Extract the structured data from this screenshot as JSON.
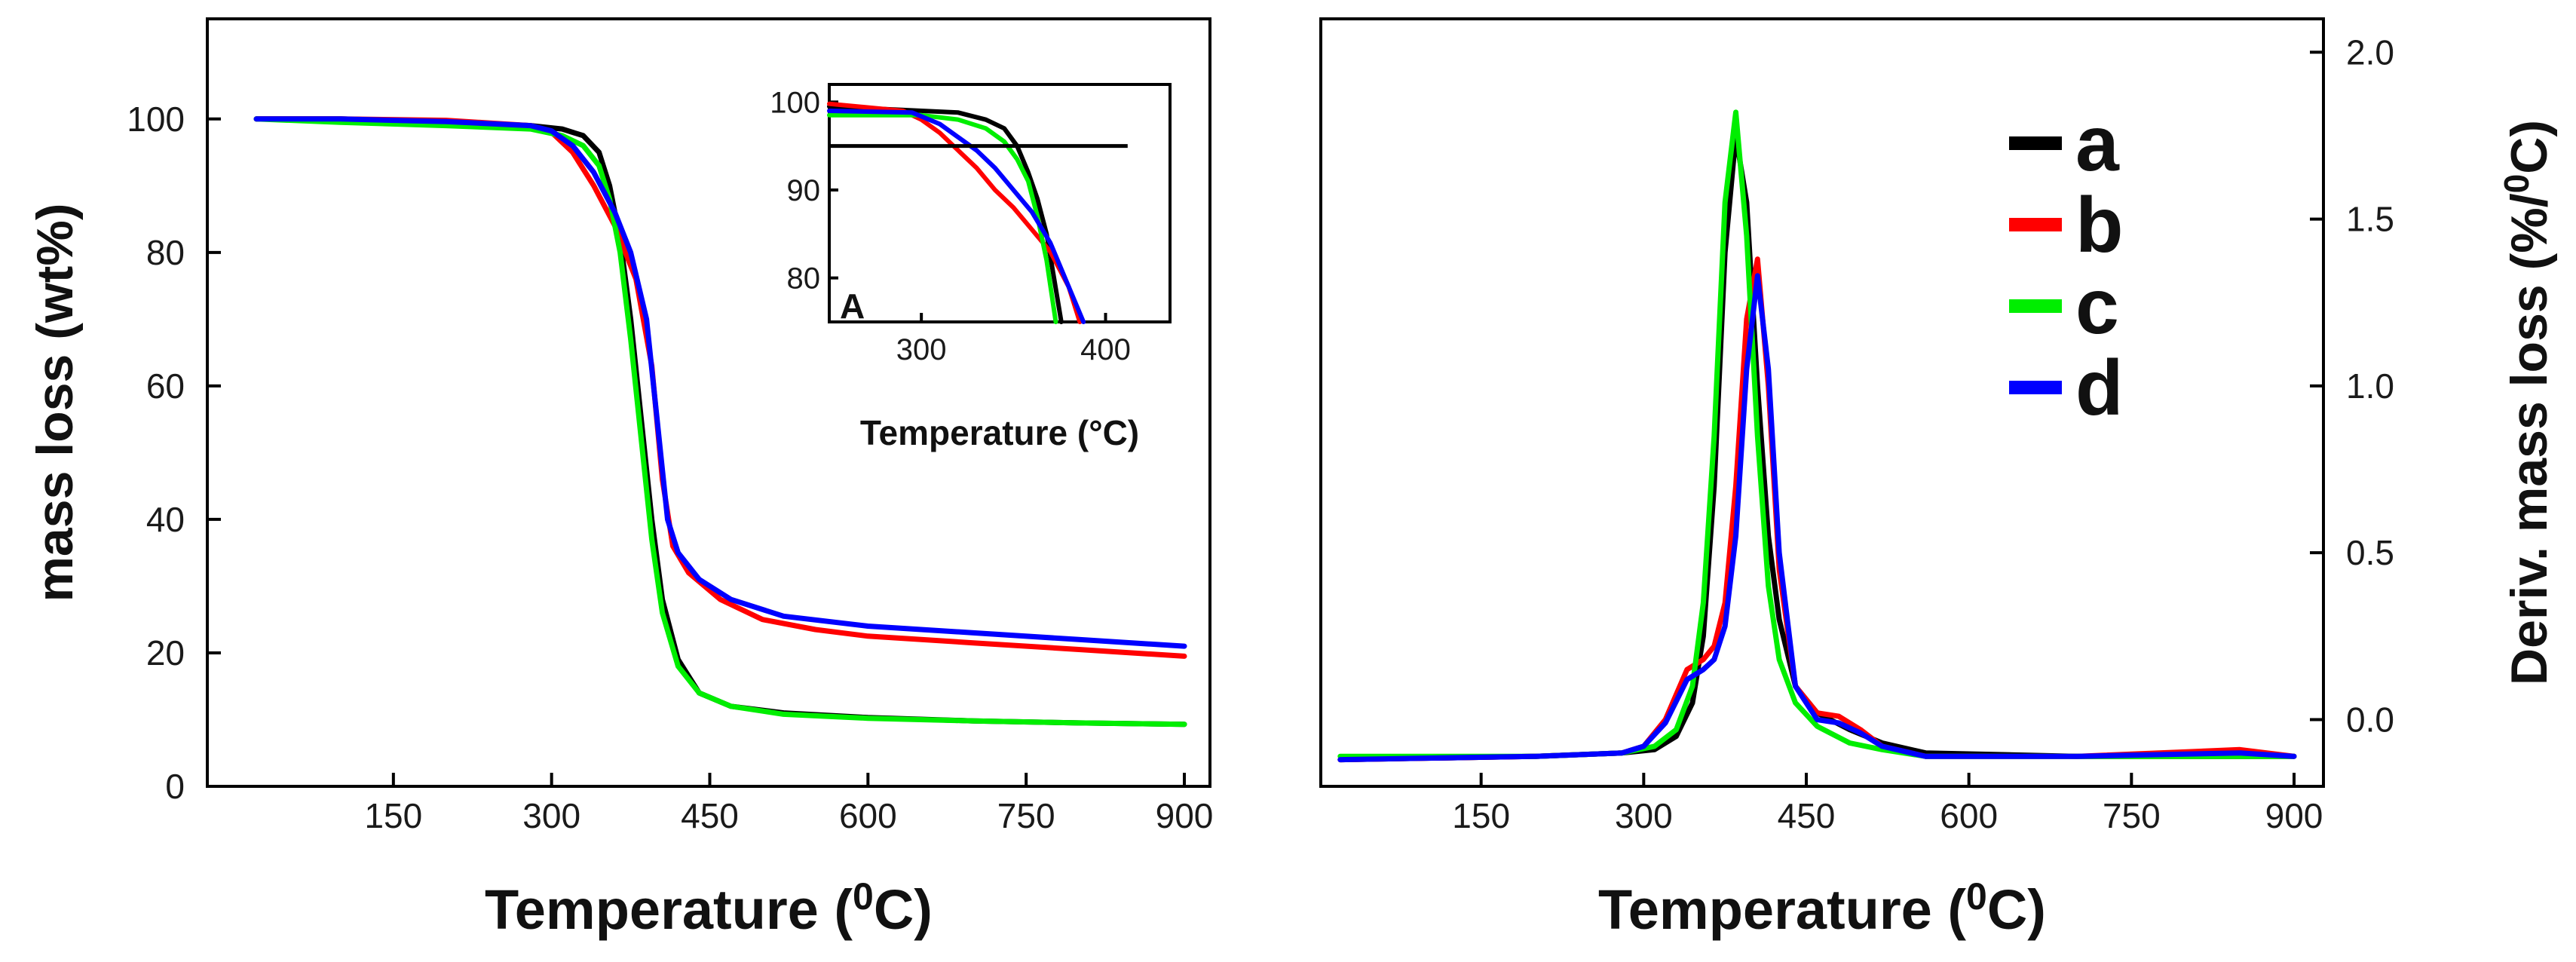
{
  "chart_data": [
    {
      "id": "tga",
      "type": "line",
      "xlabel": "Temperature (",
      "xlabel_sup": "0",
      "xlabel_end": "C)",
      "ylabel": "mass loss (wt%)",
      "xlim": [
        0,
        900
      ],
      "ylim": [
        0,
        115
      ],
      "xticks": [
        150,
        300,
        450,
        600,
        750,
        900
      ],
      "yticks": [
        0,
        20,
        40,
        60,
        80,
        100
      ],
      "series": [
        {
          "name": "a",
          "color": "#000000",
          "x": [
            20,
            100,
            200,
            280,
            310,
            330,
            345,
            355,
            365,
            375,
            385,
            395,
            405,
            420,
            440,
            470,
            520,
            600,
            700,
            800,
            900
          ],
          "y": [
            100,
            100,
            99.6,
            99,
            98.5,
            97.5,
            95,
            90,
            82,
            70,
            55,
            40,
            28,
            19,
            14,
            12,
            11,
            10.3,
            9.8,
            9.5,
            9.3
          ]
        },
        {
          "name": "b",
          "color": "#ff0000",
          "x": [
            20,
            100,
            200,
            280,
            300,
            320,
            340,
            360,
            380,
            395,
            405,
            415,
            430,
            460,
            500,
            550,
            600,
            700,
            800,
            900
          ],
          "y": [
            100,
            100,
            99.8,
            99,
            98,
            95,
            90,
            84,
            76,
            63,
            46,
            36,
            32,
            28,
            25,
            23.5,
            22.5,
            21.5,
            20.5,
            19.5
          ]
        },
        {
          "name": "c",
          "color": "#00ee00",
          "x": [
            20,
            100,
            200,
            280,
            310,
            330,
            345,
            355,
            365,
            375,
            385,
            395,
            405,
            420,
            440,
            470,
            520,
            600,
            700,
            800,
            900
          ],
          "y": [
            100,
            99.5,
            99,
            98.5,
            97.5,
            96,
            93,
            88,
            80,
            67,
            52,
            37,
            26,
            18,
            14,
            12,
            10.8,
            10.2,
            9.8,
            9.5,
            9.3
          ]
        },
        {
          "name": "d",
          "color": "#0000ff",
          "x": [
            20,
            100,
            200,
            280,
            300,
            320,
            340,
            360,
            375,
            390,
            400,
            410,
            420,
            440,
            470,
            520,
            600,
            700,
            800,
            900
          ],
          "y": [
            100,
            100,
            99.6,
            99,
            98.2,
            96,
            92,
            86,
            80,
            70,
            55,
            40,
            35,
            31,
            28,
            25.5,
            24,
            23,
            22,
            21
          ]
        }
      ]
    },
    {
      "id": "inset",
      "type": "line",
      "panel_label": "A",
      "xlabel": "Temperature (°C)",
      "xlim": [
        250,
        435
      ],
      "ylim": [
        75,
        102
      ],
      "xticks": [
        300,
        400
      ],
      "yticks": [
        80,
        90,
        100
      ],
      "reference_line_y": 95,
      "series": [
        {
          "name": "a",
          "color": "#000000",
          "x": [
            250,
            300,
            320,
            335,
            345,
            352,
            358,
            363,
            368,
            372,
            376
          ],
          "y": [
            99.5,
            99,
            98.8,
            98,
            97,
            95,
            92,
            89,
            85,
            80,
            75
          ]
        },
        {
          "name": "b",
          "color": "#ff0000",
          "x": [
            250,
            290,
            300,
            310,
            320,
            330,
            340,
            350,
            360,
            370,
            380,
            386
          ],
          "y": [
            99.8,
            99,
            98,
            96.5,
            94.5,
            92.5,
            90,
            88,
            85.5,
            83,
            79,
            75
          ]
        },
        {
          "name": "c",
          "color": "#00ee00",
          "x": [
            250,
            300,
            320,
            335,
            345,
            352,
            358,
            363,
            368,
            373
          ],
          "y": [
            98.5,
            98.5,
            98,
            97,
            95.5,
            93.5,
            91,
            87,
            82,
            75
          ]
        },
        {
          "name": "d",
          "color": "#0000ff",
          "x": [
            250,
            295,
            310,
            320,
            330,
            340,
            350,
            360,
            370,
            380,
            388
          ],
          "y": [
            99,
            98.8,
            97.5,
            96,
            94.5,
            92.5,
            90,
            87.5,
            84,
            79,
            75
          ]
        }
      ]
    },
    {
      "id": "dtg",
      "type": "line",
      "xlabel": "Temperature (",
      "xlabel_sup": "0",
      "xlabel_end": "C)",
      "ylabel": "Deriv. mass loss (%/",
      "ylabel_sup": "0",
      "ylabel_end": "C)",
      "xlim": [
        0,
        910
      ],
      "ylim": [
        -0.2,
        2.1
      ],
      "xticks": [
        150,
        300,
        450,
        600,
        750,
        900
      ],
      "yticks": [
        0.0,
        0.5,
        1.0,
        1.5,
        2.0
      ],
      "ytick_labels": [
        "0.0",
        "0.5",
        "1.0",
        "1.5",
        "2.0"
      ],
      "legend": [
        "a",
        "b",
        "c",
        "d"
      ],
      "series": [
        {
          "name": "a",
          "color": "#000000",
          "x": [
            20,
            200,
            280,
            310,
            330,
            345,
            355,
            365,
            375,
            385,
            395,
            405,
            415,
            425,
            440,
            460,
            490,
            520,
            560,
            700,
            900
          ],
          "y": [
            -0.12,
            -0.11,
            -0.1,
            -0.09,
            -0.05,
            0.05,
            0.25,
            0.7,
            1.4,
            1.75,
            1.55,
            1.0,
            0.55,
            0.3,
            0.1,
            0.02,
            -0.03,
            -0.07,
            -0.1,
            -0.11,
            -0.11
          ]
        },
        {
          "name": "b",
          "color": "#ff0000",
          "x": [
            20,
            200,
            280,
            300,
            320,
            340,
            355,
            365,
            375,
            385,
            395,
            405,
            415,
            425,
            440,
            460,
            480,
            500,
            520,
            560,
            700,
            850,
            900
          ],
          "y": [
            -0.12,
            -0.11,
            -0.1,
            -0.08,
            0.0,
            0.15,
            0.18,
            0.22,
            0.35,
            0.7,
            1.2,
            1.38,
            1.0,
            0.45,
            0.1,
            0.02,
            0.01,
            -0.03,
            -0.08,
            -0.11,
            -0.11,
            -0.09,
            -0.11
          ]
        },
        {
          "name": "c",
          "color": "#00ee00",
          "x": [
            20,
            200,
            280,
            310,
            330,
            345,
            355,
            365,
            375,
            385,
            395,
            405,
            415,
            425,
            440,
            460,
            490,
            520,
            560,
            700,
            900
          ],
          "y": [
            -0.11,
            -0.11,
            -0.1,
            -0.08,
            -0.03,
            0.1,
            0.35,
            0.85,
            1.55,
            1.82,
            1.45,
            0.85,
            0.4,
            0.18,
            0.05,
            -0.02,
            -0.07,
            -0.09,
            -0.11,
            -0.11,
            -0.11
          ]
        },
        {
          "name": "d",
          "color": "#0000ff",
          "x": [
            20,
            200,
            280,
            300,
            320,
            340,
            355,
            365,
            375,
            385,
            395,
            405,
            415,
            425,
            440,
            460,
            480,
            500,
            520,
            560,
            700,
            850,
            900
          ],
          "y": [
            -0.12,
            -0.11,
            -0.1,
            -0.08,
            -0.01,
            0.12,
            0.15,
            0.18,
            0.28,
            0.55,
            1.05,
            1.33,
            1.05,
            0.5,
            0.1,
            0.0,
            -0.01,
            -0.04,
            -0.08,
            -0.11,
            -0.11,
            -0.1,
            -0.11
          ]
        }
      ]
    }
  ]
}
